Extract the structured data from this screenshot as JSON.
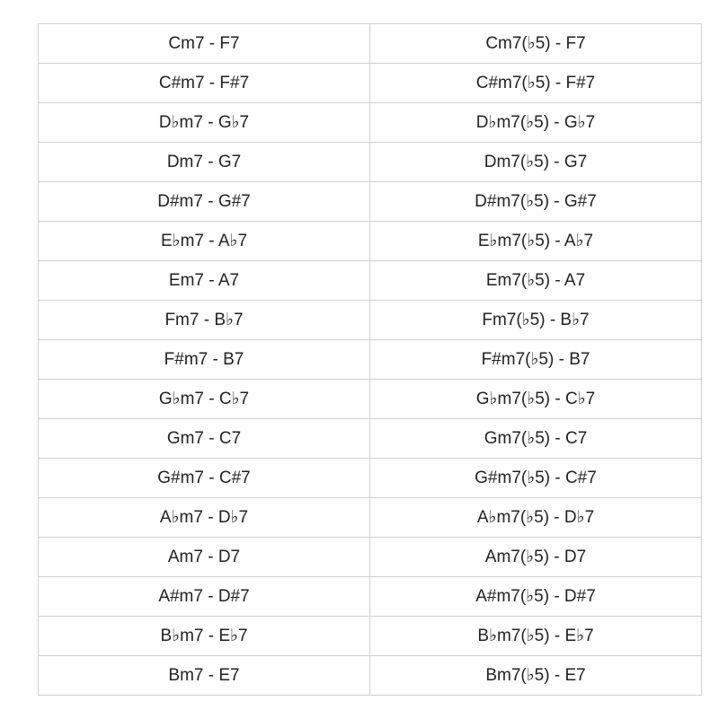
{
  "rows": [
    [
      "Cm7 - F7",
      "Cm7(♭5) - F7"
    ],
    [
      "C#m7 - F#7",
      "C#m7(♭5) - F#7"
    ],
    [
      "D♭m7 - G♭7",
      "D♭m7(♭5) - G♭7"
    ],
    [
      "Dm7 - G7",
      "Dm7(♭5) - G7"
    ],
    [
      "D#m7 - G#7",
      "D#m7(♭5) - G#7"
    ],
    [
      "E♭m7 - A♭7",
      "E♭m7(♭5) - A♭7"
    ],
    [
      "Em7 - A7",
      "Em7(♭5) - A7"
    ],
    [
      "Fm7 - B♭7",
      "Fm7(♭5) - B♭7"
    ],
    [
      "F#m7 - B7",
      "F#m7(♭5) - B7"
    ],
    [
      "G♭m7 - C♭7",
      "G♭m7(♭5) - C♭7"
    ],
    [
      "Gm7 - C7",
      "Gm7(♭5) - C7"
    ],
    [
      "G#m7 - C#7",
      "G#m7(♭5) - C#7"
    ],
    [
      "A♭m7 - D♭7",
      "A♭m7(♭5) - D♭7"
    ],
    [
      "Am7 - D7",
      "Am7(♭5) - D7"
    ],
    [
      "A#m7 - D#7",
      "A#m7(♭5) - D#7"
    ],
    [
      "B♭m7 - E♭7",
      "B♭m7(♭5) - E♭7"
    ],
    [
      "Bm7 - E7",
      "Bm7(♭5) - E7"
    ]
  ]
}
